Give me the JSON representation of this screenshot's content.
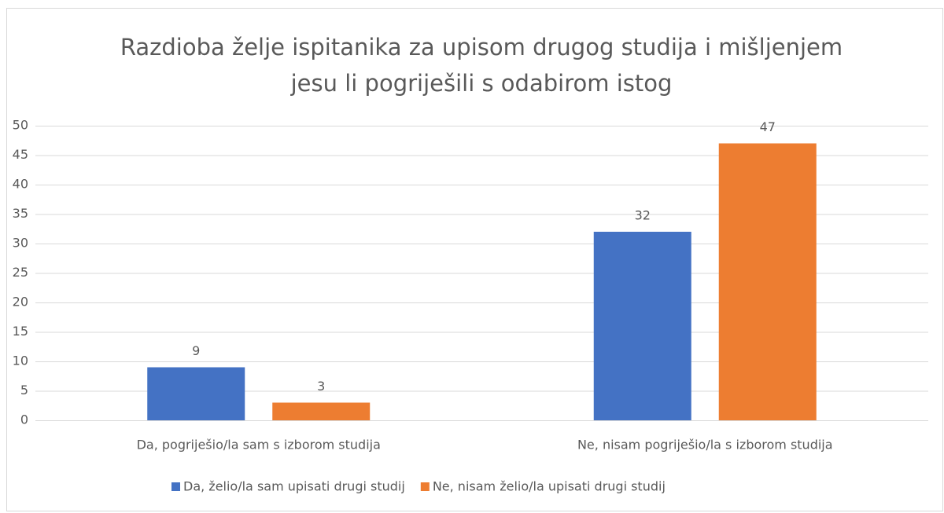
{
  "chart_data": {
    "type": "bar",
    "title": [
      "Razdioba želje ispitanika za upisom drugog studija i mišljenjem",
      "jesu li pogriješili s odabirom istog"
    ],
    "categories": [
      "Da, pogriješio/la sam s izborom studija",
      "Ne, nisam pogriješio/la s izborom studija"
    ],
    "series": [
      {
        "name": "Da, želio/la sam upisati drugi studij",
        "color": "#4472c4",
        "values": [
          9,
          32
        ]
      },
      {
        "name": "Ne, nisam želio/la upisati drugi studij",
        "color": "#ed7d31",
        "values": [
          3,
          47
        ]
      }
    ],
    "ylim": [
      0,
      50
    ],
    "yticks": [
      0,
      5,
      10,
      15,
      20,
      25,
      30,
      35,
      40,
      45,
      50
    ],
    "grid": true,
    "legend": "bottom"
  }
}
